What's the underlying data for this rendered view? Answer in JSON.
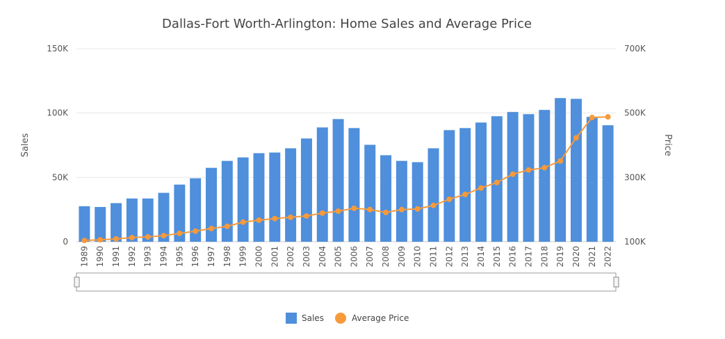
{
  "chart_data": {
    "type": "bar+line",
    "title": "Dallas-Fort Worth-Arlington: Home Sales and Average Price",
    "categories": [
      "1989",
      "1990",
      "1991",
      "1992",
      "1993",
      "1994",
      "1995",
      "1996",
      "1997",
      "1998",
      "1999",
      "2000",
      "2001",
      "2002",
      "2003",
      "2004",
      "2005",
      "2006",
      "2007",
      "2008",
      "2009",
      "2010",
      "2011",
      "2012",
      "2013",
      "2014",
      "2015",
      "2016",
      "2017",
      "2018",
      "2019",
      "2020",
      "2021",
      "2022"
    ],
    "series": [
      {
        "name": "Sales",
        "type": "bar",
        "axis": "left",
        "color": "#4f8fdc",
        "values": [
          27600,
          27000,
          30000,
          33600,
          33600,
          38000,
          44400,
          49300,
          57400,
          62800,
          65500,
          68800,
          69300,
          72600,
          80200,
          88800,
          95300,
          88300,
          75300,
          67200,
          62800,
          61800,
          72600,
          86700,
          88300,
          92600,
          97500,
          100800,
          99100,
          102400,
          111600,
          111000,
          97000,
          90500
        ]
      },
      {
        "name": "Average Price",
        "type": "line",
        "axis": "right",
        "color": "#f79a3b",
        "values": [
          104000,
          106000,
          109000,
          113000,
          115000,
          119000,
          126000,
          133000,
          141000,
          148000,
          161000,
          167000,
          172000,
          176000,
          180000,
          189000,
          195000,
          204000,
          200000,
          191000,
          200000,
          202000,
          213000,
          232000,
          247000,
          267000,
          284000,
          310000,
          323000,
          330000,
          351000,
          423000,
          486000,
          488000
        ]
      }
    ],
    "ylabel": "Sales",
    "y2label": "Price",
    "ylim": [
      0,
      150000
    ],
    "y2lim": [
      100000,
      700000
    ],
    "yticks": [
      "0",
      "50K",
      "100K",
      "150K"
    ],
    "y2ticks": [
      "100K",
      "300K",
      "500K",
      "700K"
    ],
    "grid": true,
    "legend": "bottom-center",
    "range_slider": true
  }
}
